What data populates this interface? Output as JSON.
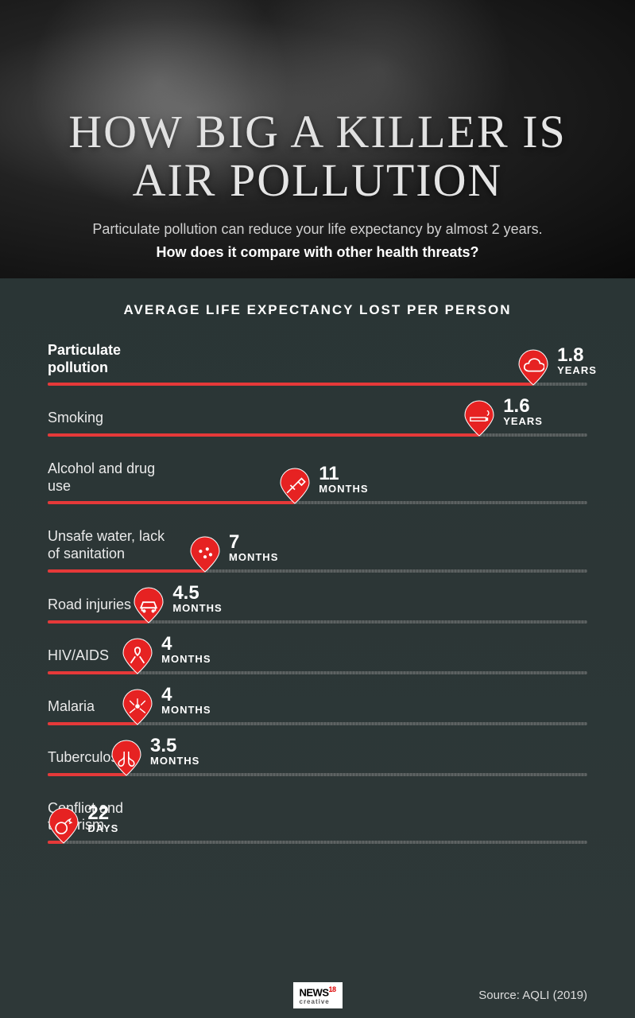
{
  "hero": {
    "title": "HOW BIG A KILLER IS AIR POLLUTION",
    "subtitle_line1": "Particulate pollution can reduce your life expectancy by almost 2 years.",
    "subtitle_line2": "How does it compare with other health threats?"
  },
  "chart": {
    "title": "AVERAGE LIFE EXPECTANCY LOST PER PERSON",
    "max_value_months": 24,
    "bar_color": "#e63939",
    "track_color": "#9a9a9a",
    "marker_fill": "#e62222",
    "background": "#2e3838",
    "title_color": "#ffffff",
    "rows": [
      {
        "label": "Particulate pollution",
        "bold": true,
        "value_num": "1.8",
        "value_unit": "YEARS",
        "months": 21.6,
        "icon": "cloud"
      },
      {
        "label": "Smoking",
        "bold": false,
        "value_num": "1.6",
        "value_unit": "YEARS",
        "months": 19.2,
        "icon": "cigarette"
      },
      {
        "label": "Alcohol and drug use",
        "bold": false,
        "value_num": "11",
        "value_unit": "MONTHS",
        "months": 11,
        "icon": "syringe"
      },
      {
        "label": "Unsafe water, lack of sanitation",
        "bold": false,
        "value_num": "7",
        "value_unit": "MONTHS",
        "months": 7,
        "icon": "water"
      },
      {
        "label": "Road injuries",
        "bold": false,
        "value_num": "4.5",
        "value_unit": "MONTHS",
        "months": 4.5,
        "icon": "car"
      },
      {
        "label": "HIV/AIDS",
        "bold": false,
        "value_num": "4",
        "value_unit": "MONTHS",
        "months": 4,
        "icon": "ribbon"
      },
      {
        "label": "Malaria",
        "bold": false,
        "value_num": "4",
        "value_unit": "MONTHS",
        "months": 4,
        "icon": "mosquito"
      },
      {
        "label": "Tuberculosis",
        "bold": false,
        "value_num": "3.5",
        "value_unit": "MONTHS",
        "months": 3.5,
        "icon": "lungs"
      },
      {
        "label": "Conflict and terrorism",
        "bold": false,
        "value_num": "22",
        "value_unit": "DAYS",
        "months": 0.72,
        "icon": "bomb"
      }
    ]
  },
  "footer": {
    "logo_main": "NEWS",
    "logo_sup": "18",
    "logo_sub": "creative",
    "source": "Source: AQLI (2019)"
  }
}
